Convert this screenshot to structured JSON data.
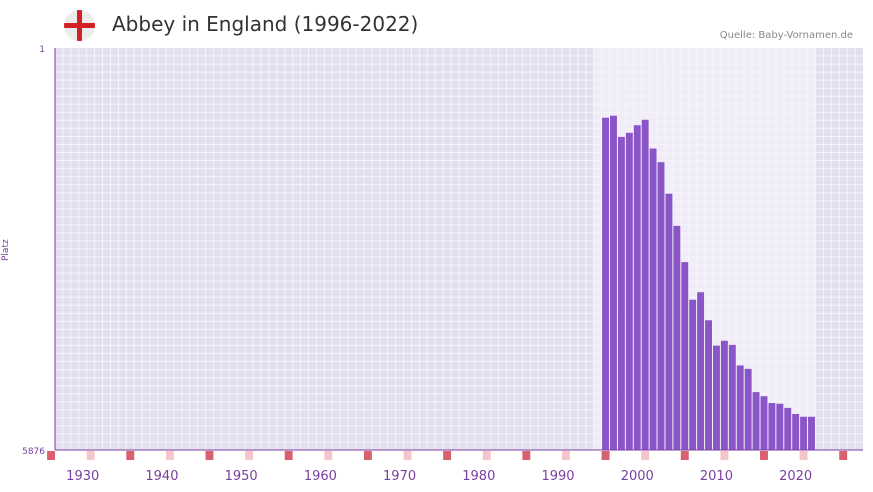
{
  "header": {
    "title": "Abbey in England (1996-2022)",
    "source": "Quelle: Baby-Vornamen.de",
    "flag_icon": "england-flag-icon"
  },
  "colors": {
    "bar": "#8a55c7",
    "axis": "#7a3fa0",
    "tick_label": "#7a3fa0",
    "decade_marker": "#d9606e",
    "midyear_marker": "#f4c6cc",
    "plot_bg": "#e3dfee",
    "highlight_bg": "#f0ecf8",
    "grid": "#f6f4fa"
  },
  "chart_data": {
    "type": "bar",
    "title": "Abbey in England (1996-2022)",
    "xlabel": "",
    "ylabel": "Platz",
    "y_axis_inverted": true,
    "ylim": [
      1,
      5876
    ],
    "y_ticks": [
      "1",
      "5876"
    ],
    "xlim": [
      1926.5,
      2028.5
    ],
    "x_ticks": [
      1930,
      1940,
      1950,
      1960,
      1970,
      1980,
      1990,
      2000,
      2010,
      2020
    ],
    "highlight_range": [
      1994.5,
      2022.5
    ],
    "decade_markers": [
      1926,
      1936,
      1946,
      1956,
      1966,
      1976,
      1986,
      1996,
      2006,
      2016,
      2026
    ],
    "midyear_markers": [
      1931,
      1941,
      1951,
      1961,
      1971,
      1981,
      1991,
      2001,
      2011,
      2021
    ],
    "x": [
      1996,
      1997,
      1998,
      1999,
      2000,
      2001,
      2002,
      2003,
      2004,
      2005,
      2006,
      2007,
      2008,
      2009,
      2010,
      2011,
      2012,
      2013,
      2014,
      2015,
      2016,
      2017,
      2018,
      2019,
      2020,
      2021,
      2022
    ],
    "values": [
      1020,
      990,
      1300,
      1240,
      1130,
      1050,
      1470,
      1670,
      2130,
      2600,
      3130,
      3680,
      3570,
      3980,
      4350,
      4280,
      4340,
      4640,
      4690,
      5030,
      5090,
      5190,
      5200,
      5260,
      5350,
      5390,
      5390
    ]
  }
}
